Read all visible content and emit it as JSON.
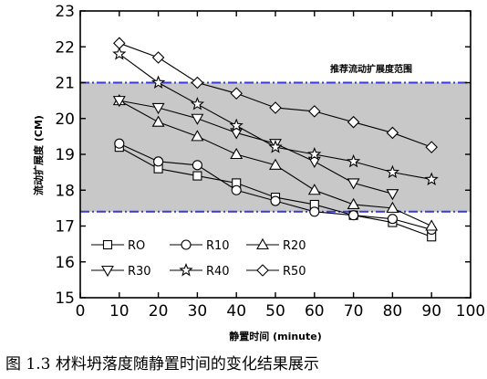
{
  "caption": "图 1.3 材料坍落度随静置时间的变化结果展示",
  "chart_data": {
    "type": "line",
    "title": "",
    "xlabel": "静置时间 (minute)",
    "ylabel": "流动扩展度 (CM)",
    "xlim": [
      0,
      100
    ],
    "ylim": [
      15,
      23
    ],
    "xticks": [
      0,
      10,
      20,
      30,
      40,
      50,
      60,
      70,
      80,
      90,
      100
    ],
    "yticks": [
      15,
      16,
      17,
      18,
      19,
      20,
      21,
      22,
      23
    ],
    "grid": false,
    "legend_position": "bottom-left",
    "band": {
      "label": "推荐流动扩展度范围",
      "lower": 17.4,
      "upper": 21.0,
      "fill": "#c8c8c8",
      "line_color": "#3a3ad6"
    },
    "x": [
      10,
      20,
      30,
      40,
      50,
      60,
      70,
      80,
      90
    ],
    "series": [
      {
        "name": "RO",
        "marker": "square",
        "values": [
          19.2,
          18.6,
          18.4,
          18.2,
          17.8,
          17.6,
          17.3,
          17.1,
          16.7
        ]
      },
      {
        "name": "R10",
        "marker": "circle",
        "values": [
          19.3,
          18.8,
          18.7,
          18.0,
          17.7,
          17.4,
          17.3,
          17.2,
          16.9
        ]
      },
      {
        "name": "R20",
        "marker": "triangle",
        "values": [
          20.5,
          19.9,
          19.5,
          19.0,
          18.7,
          18.0,
          17.6,
          17.5,
          17.0
        ]
      },
      {
        "name": "R30",
        "marker": "triangle-down",
        "values": [
          20.5,
          20.3,
          20.0,
          19.6,
          19.3,
          18.8,
          18.2,
          17.9,
          null
        ]
      },
      {
        "name": "R40",
        "marker": "star",
        "values": [
          21.8,
          21.0,
          20.4,
          19.8,
          19.2,
          19.0,
          18.8,
          18.5,
          18.3
        ]
      },
      {
        "name": "R50",
        "marker": "diamond",
        "values": [
          22.1,
          21.7,
          21.0,
          20.7,
          20.3,
          20.2,
          19.9,
          19.6,
          19.2
        ]
      }
    ]
  }
}
